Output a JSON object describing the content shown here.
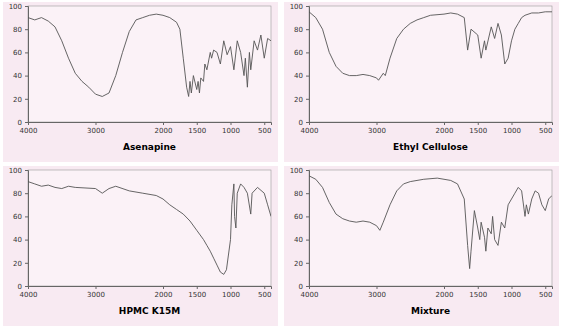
{
  "chart_data": [
    {
      "type": "line",
      "title": "Asenapine",
      "x": [
        4000,
        3900,
        3800,
        3700,
        3600,
        3500,
        3400,
        3300,
        3200,
        3100,
        3000,
        2900,
        2800,
        2700,
        2600,
        2500,
        2400,
        2300,
        2200,
        2100,
        2000,
        1900,
        1800,
        1750,
        1700,
        1650,
        1620,
        1600,
        1580,
        1550,
        1500,
        1480,
        1460,
        1440,
        1400,
        1380,
        1350,
        1300,
        1280,
        1250,
        1200,
        1150,
        1100,
        1050,
        1000,
        950,
        900,
        850,
        800,
        780,
        750,
        720,
        700,
        650,
        600,
        550,
        500,
        450,
        400
      ],
      "series": [
        {
          "color": "#555555",
          "values": [
            90,
            88,
            90,
            87,
            82,
            70,
            55,
            42,
            35,
            30,
            24,
            22,
            25,
            40,
            60,
            78,
            88,
            90,
            92,
            93,
            92,
            90,
            86,
            80,
            55,
            30,
            22,
            35,
            25,
            40,
            28,
            35,
            25,
            38,
            35,
            50,
            45,
            60,
            55,
            62,
            60,
            50,
            70,
            58,
            65,
            45,
            70,
            60,
            40,
            55,
            30,
            60,
            45,
            70,
            62,
            75,
            55,
            72,
            70
          ]
        }
      ],
      "xlim": [
        4000,
        400
      ],
      "ylim": [
        0,
        100
      ],
      "xticks": [
        4000,
        3000,
        2000,
        1500,
        1000,
        500
      ],
      "yticks": [
        0,
        20,
        40,
        60,
        80,
        100
      ]
    },
    {
      "type": "line",
      "title": "Ethyl Cellulose",
      "x": [
        4000,
        3900,
        3800,
        3700,
        3600,
        3500,
        3400,
        3300,
        3200,
        3100,
        3000,
        2970,
        2900,
        2870,
        2800,
        2700,
        2600,
        2500,
        2400,
        2300,
        2200,
        2000,
        1900,
        1800,
        1700,
        1650,
        1600,
        1500,
        1450,
        1400,
        1380,
        1300,
        1250,
        1200,
        1150,
        1100,
        1050,
        1000,
        950,
        900,
        850,
        800,
        700,
        600,
        500,
        400
      ],
      "series": [
        {
          "color": "#555555",
          "values": [
            95,
            90,
            80,
            60,
            48,
            42,
            40,
            40,
            41,
            40,
            38,
            36,
            42,
            40,
            55,
            72,
            80,
            85,
            88,
            90,
            92,
            93,
            94,
            93,
            90,
            62,
            80,
            75,
            55,
            70,
            62,
            82,
            72,
            85,
            75,
            50,
            55,
            70,
            80,
            85,
            90,
            92,
            94,
            94,
            95,
            95
          ]
        }
      ],
      "xlim": [
        4000,
        400
      ],
      "ylim": [
        0,
        100
      ],
      "xticks": [
        4000,
        3000,
        2000,
        1500,
        1000,
        500
      ],
      "yticks": [
        0,
        20,
        40,
        60,
        80,
        100
      ]
    },
    {
      "type": "line",
      "title": "HPMC K15M",
      "x": [
        4000,
        3900,
        3800,
        3700,
        3600,
        3500,
        3400,
        3300,
        3000,
        2900,
        2800,
        2700,
        2500,
        2300,
        2100,
        2000,
        1900,
        1800,
        1700,
        1600,
        1500,
        1450,
        1400,
        1350,
        1300,
        1250,
        1200,
        1150,
        1100,
        1060,
        1000,
        980,
        950,
        940,
        920,
        900,
        850,
        800,
        750,
        700,
        680,
        600,
        500,
        450,
        400
      ],
      "series": [
        {
          "color": "#555555",
          "values": [
            90,
            88,
            86,
            87,
            85,
            84,
            86,
            85,
            84,
            80,
            84,
            86,
            82,
            80,
            78,
            75,
            70,
            66,
            62,
            56,
            48,
            44,
            40,
            35,
            30,
            24,
            18,
            12,
            10,
            14,
            40,
            70,
            88,
            60,
            50,
            80,
            88,
            85,
            80,
            62,
            80,
            85,
            80,
            70,
            60
          ]
        }
      ],
      "xlim": [
        4000,
        400
      ],
      "ylim": [
        0,
        100
      ],
      "xticks": [
        4000,
        3000,
        2000,
        1500,
        1000,
        500
      ],
      "yticks": [
        0,
        20,
        40,
        60,
        80,
        100
      ]
    },
    {
      "type": "line",
      "title": "Mixture",
      "x": [
        4000,
        3900,
        3800,
        3700,
        3600,
        3500,
        3400,
        3300,
        3200,
        3100,
        3000,
        2950,
        2900,
        2800,
        2700,
        2600,
        2500,
        2300,
        2100,
        2000,
        1900,
        1800,
        1700,
        1650,
        1620,
        1600,
        1550,
        1500,
        1470,
        1450,
        1400,
        1380,
        1350,
        1300,
        1280,
        1250,
        1200,
        1150,
        1100,
        1050,
        1000,
        950,
        900,
        850,
        800,
        780,
        750,
        700,
        650,
        600,
        550,
        500,
        450,
        400
      ],
      "series": [
        {
          "color": "#555555",
          "values": [
            95,
            92,
            85,
            72,
            62,
            58,
            56,
            55,
            56,
            55,
            52,
            48,
            55,
            70,
            82,
            88,
            90,
            92,
            93,
            92,
            91,
            88,
            75,
            35,
            15,
            30,
            65,
            50,
            40,
            55,
            42,
            30,
            50,
            45,
            60,
            40,
            35,
            55,
            50,
            70,
            75,
            80,
            85,
            82,
            60,
            70,
            62,
            75,
            82,
            80,
            70,
            65,
            75,
            78
          ]
        }
      ],
      "xlim": [
        4000,
        400
      ],
      "ylim": [
        0,
        100
      ],
      "xticks": [
        4000,
        3000,
        2000,
        1500,
        1000,
        500
      ],
      "yticks": [
        0,
        20,
        40,
        60,
        80,
        100
      ]
    }
  ]
}
